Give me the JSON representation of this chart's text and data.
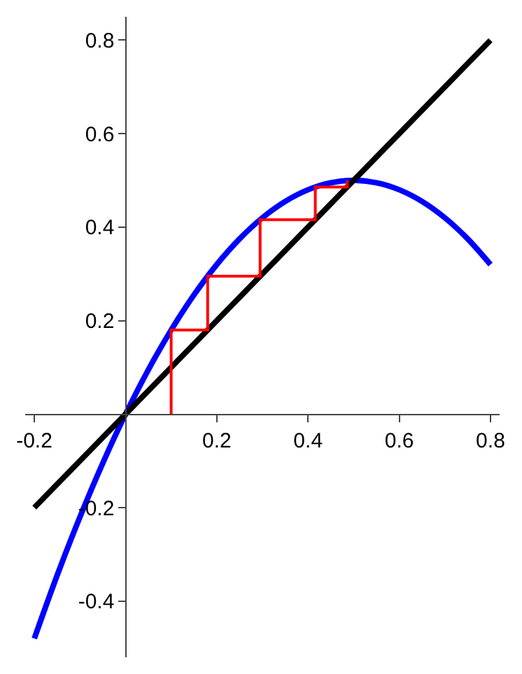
{
  "chart_data": {
    "type": "line",
    "xlim": [
      -0.22,
      0.82
    ],
    "ylim": [
      -0.52,
      0.85
    ],
    "xticks": [
      -0.2,
      0.2,
      0.4,
      0.6,
      0.8
    ],
    "yticks": [
      -0.4,
      -0.2,
      0.2,
      0.4,
      0.6,
      0.8
    ],
    "legend": false,
    "marker": "none",
    "line_style": "solid",
    "series": [
      {
        "color": "#0000ff",
        "x": [
          -0.2,
          -0.15,
          -0.1,
          -0.05,
          0,
          0.05,
          0.1,
          0.15,
          0.2,
          0.25,
          0.3,
          0.35,
          0.4,
          0.45,
          0.5,
          0.55,
          0.6,
          0.65,
          0.7,
          0.75,
          0.8
        ],
        "values": [
          -0.48,
          -0.345,
          -0.22,
          -0.105,
          0,
          0.095,
          0.18,
          0.255,
          0.32,
          0.375,
          0.42,
          0.455,
          0.48,
          0.495,
          0.5,
          0.495,
          0.48,
          0.455,
          0.42,
          0.375,
          0.32
        ]
      },
      {
        "color": "#000000",
        "x": [
          -0.2,
          0.8
        ],
        "values": [
          -0.2,
          0.8
        ]
      },
      {
        "color": "#ff0000",
        "x": [
          0.1,
          0.1,
          0.18,
          0.18,
          0.295,
          0.295,
          0.416,
          0.416,
          0.486,
          0.486
        ],
        "values": [
          0,
          0.18,
          0.18,
          0.295,
          0.295,
          0.416,
          0.416,
          0.486,
          0.486,
          0.5
        ]
      }
    ]
  }
}
